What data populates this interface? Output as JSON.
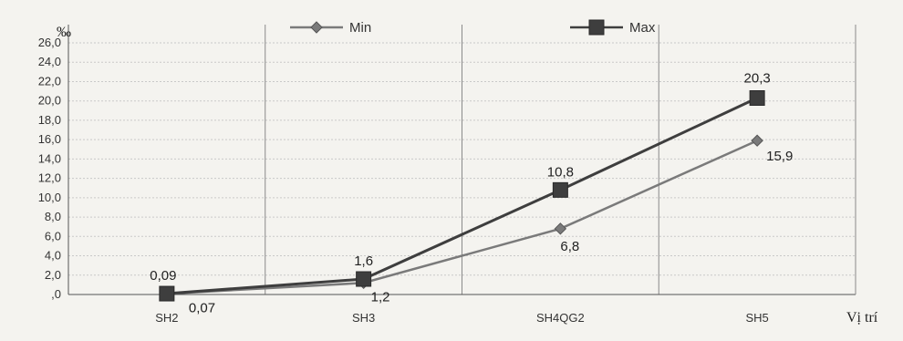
{
  "chart_data": {
    "type": "line",
    "categories": [
      "SH2",
      "SH3",
      "SH4QG2",
      "SH5"
    ],
    "series": [
      {
        "name": "Min",
        "values": [
          0.07,
          1.2,
          6.8,
          15.9
        ],
        "labels": [
          "0,07",
          "1,2",
          "6,8",
          "15,9"
        ],
        "color": "#7a7a7a",
        "marker": "diamond"
      },
      {
        "name": "Max",
        "values": [
          0.09,
          1.6,
          10.8,
          20.3
        ],
        "labels": [
          "0,09",
          "1,6",
          "10,8",
          "20,3"
        ],
        "color": "#3e3e3e",
        "marker": "square"
      }
    ],
    "ylabel": "‰",
    "xlabel": "Vị trí",
    "ylim": [
      0,
      26
    ],
    "yticks": [
      ",0",
      "2,0",
      "4,0",
      "6,0",
      "8,0",
      "10,0",
      "12,0",
      "14,0",
      "16,0",
      "18,0",
      "20,0",
      "22,0",
      "24,0",
      "26,0"
    ],
    "grid": true,
    "legend": "top"
  }
}
